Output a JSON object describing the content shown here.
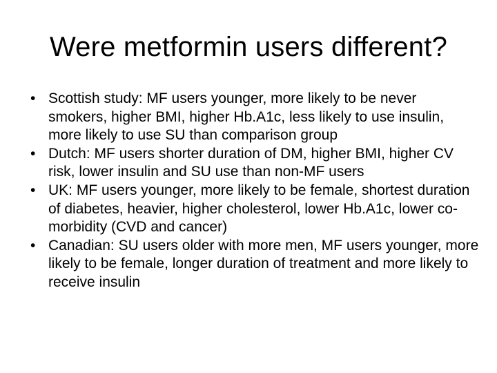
{
  "slide": {
    "title": "Were metformin users different?",
    "bullet_symbol": "•",
    "bullets": [
      {
        "text": "Scottish study: MF users younger, more likely to be never smokers, higher BMI, higher Hb.A1c, less likely to use insulin, more likely to use SU than comparison group"
      },
      {
        "text": "Dutch: MF users shorter duration of DM, higher BMI, higher CV risk, lower insulin and SU use than non-MF users"
      },
      {
        "text": "UK: MF users younger, more likely to be female, shortest duration of diabetes, heavier, higher cholesterol, lower Hb.A1c, lower co-morbidity (CVD and cancer)"
      },
      {
        "text": "Canadian: SU users older with more men, MF users younger, more likely to be female, longer duration of treatment and more likely to receive insulin"
      }
    ]
  }
}
